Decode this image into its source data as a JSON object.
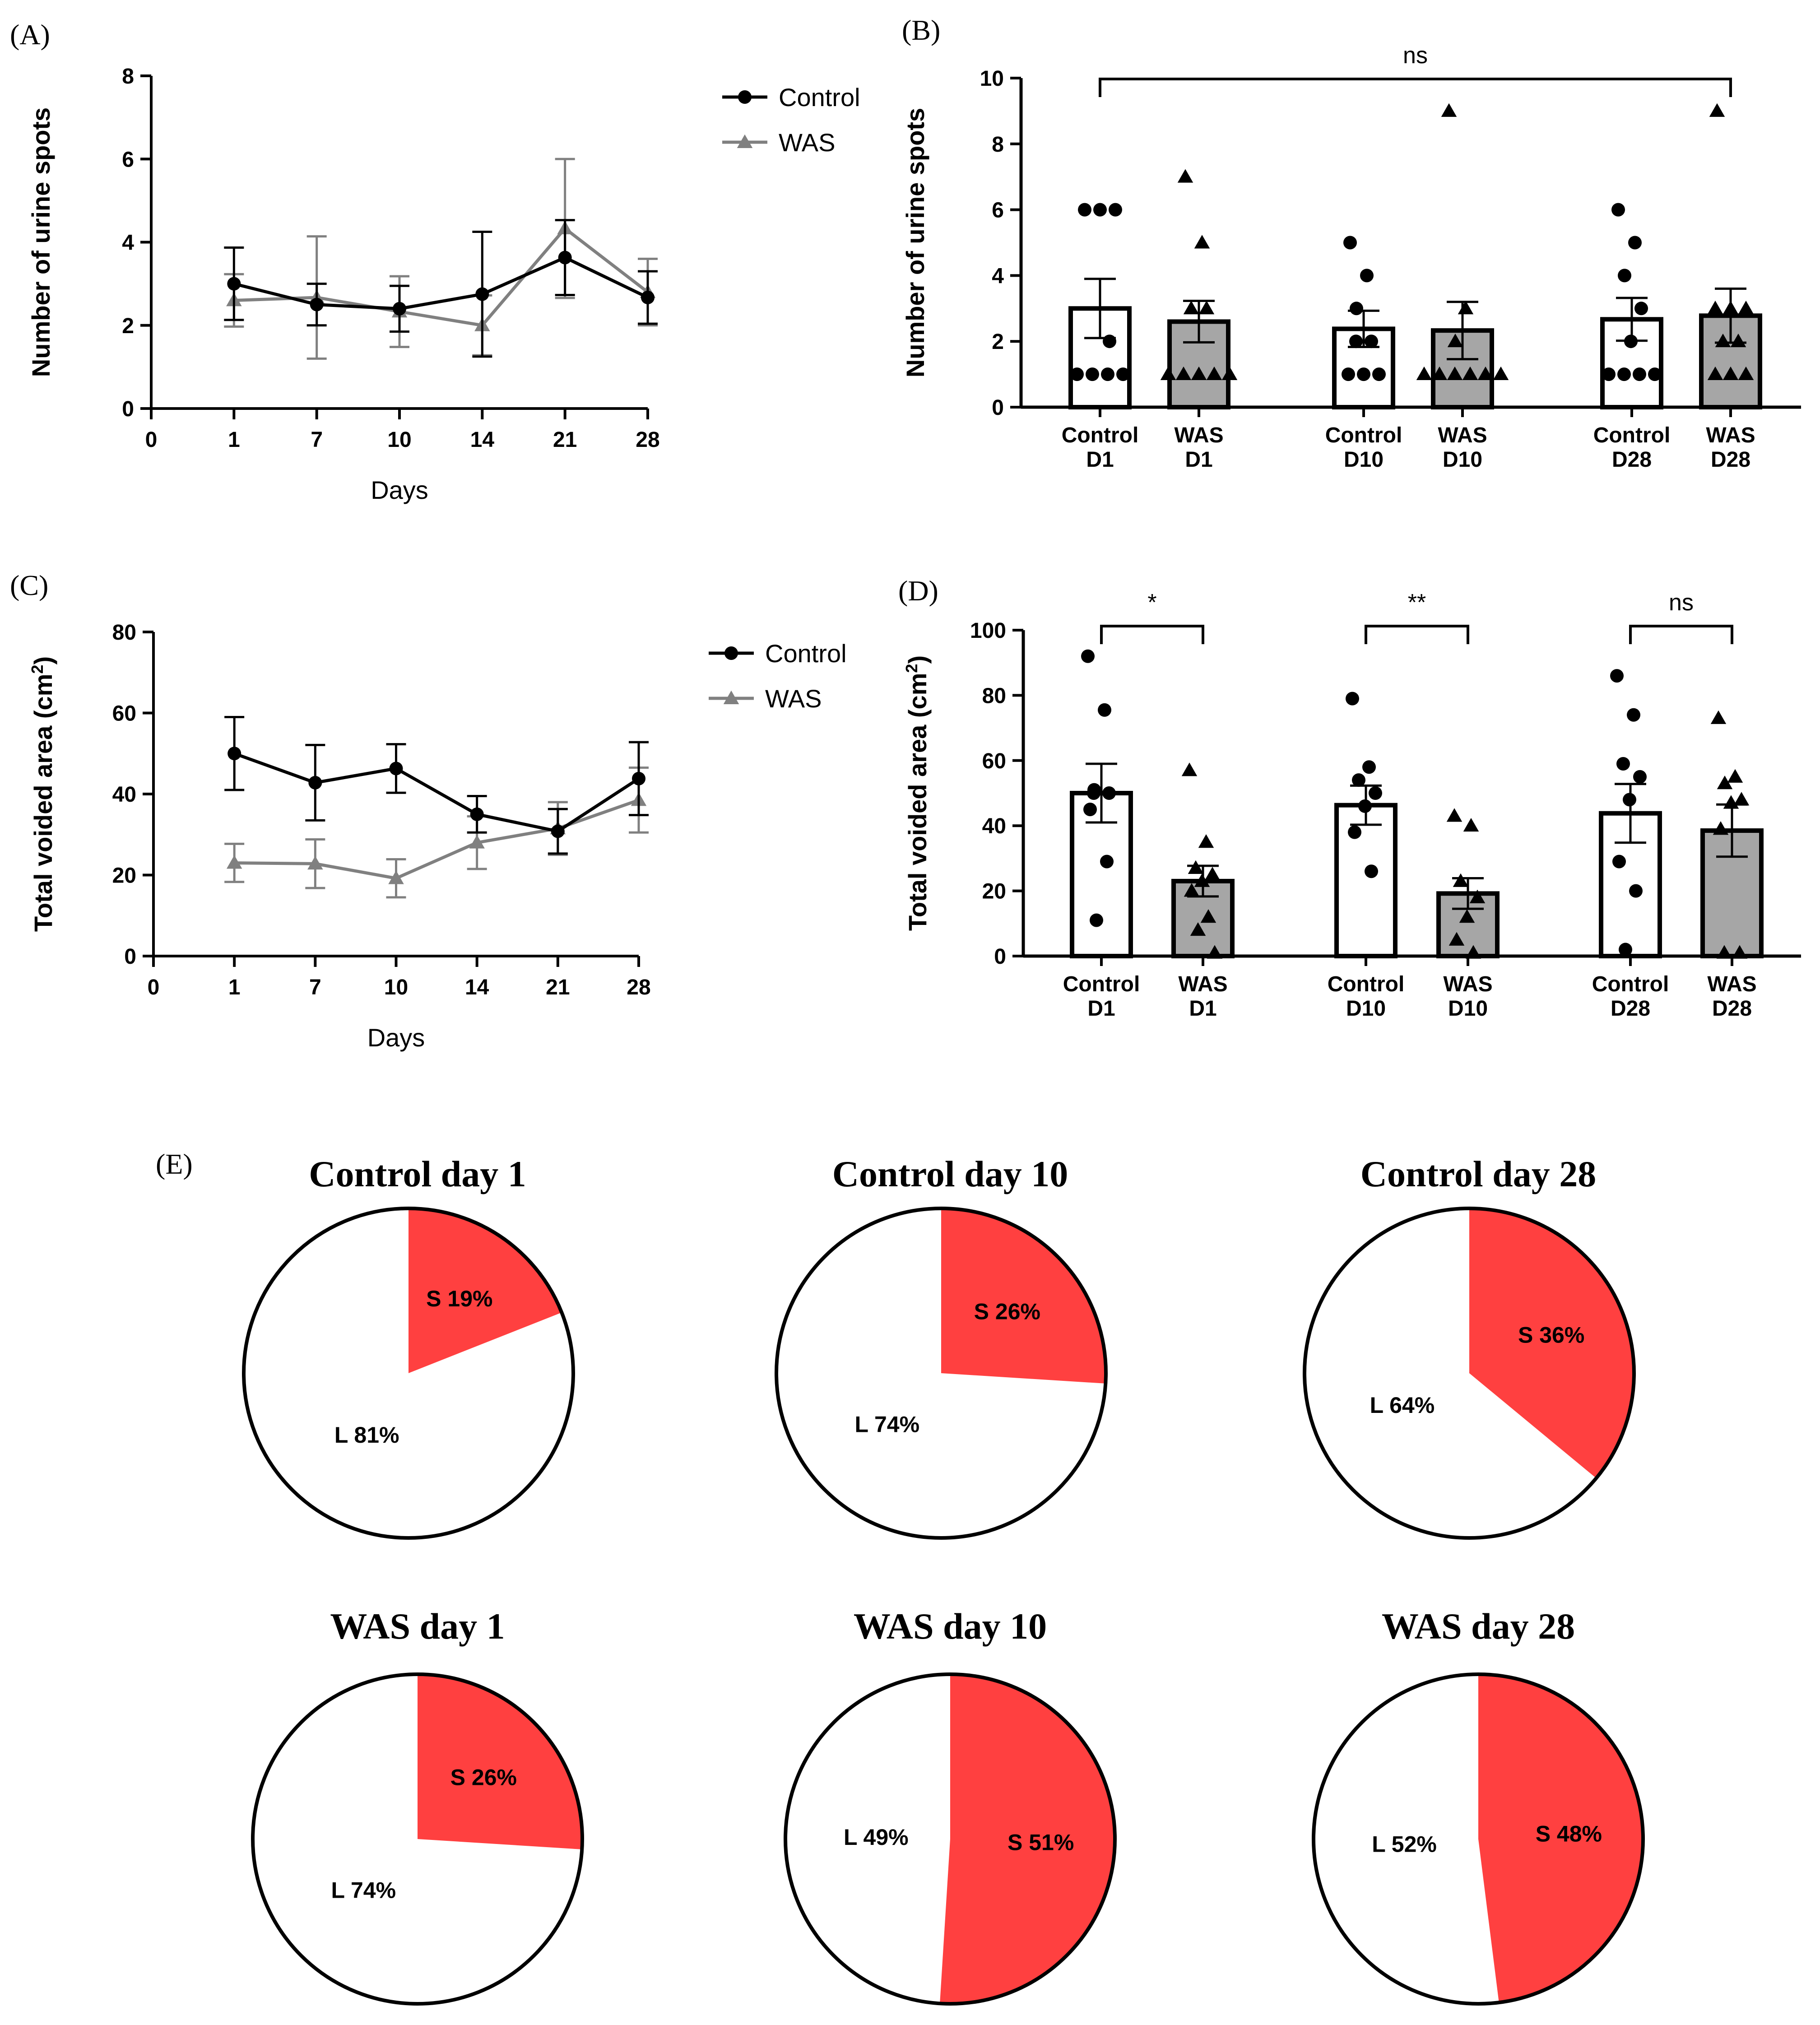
{
  "colors": {
    "control": "#000000",
    "was": "#808080",
    "bar_control_fill": "#ffffff",
    "bar_was_fill": "#a6a6a6",
    "pie_small": "#ff4040",
    "pie_large": "#ffffff"
  },
  "chart_data": [
    {
      "id": "A",
      "panel_label": "(A)",
      "type": "line",
      "x_ticks": [
        "0",
        "1",
        "7",
        "10",
        "14",
        "21",
        "28"
      ],
      "categories": [
        "1",
        "7",
        "10",
        "14",
        "21",
        "28"
      ],
      "xlabel": "Days",
      "ylabel": "Number of urine spots",
      "ylim": [
        0,
        8
      ],
      "y_ticks": [
        "0",
        "2",
        "4",
        "6",
        "8"
      ],
      "legend": {
        "placement": "right",
        "entries": [
          "Control",
          "WAS"
        ]
      },
      "series": [
        {
          "name": "Control",
          "marker": "circle",
          "values": [
            3.0,
            2.5,
            2.4,
            2.75,
            3.63,
            2.67
          ],
          "errors": [
            0.87,
            0.5,
            0.55,
            1.5,
            0.9,
            0.63
          ]
        },
        {
          "name": "WAS",
          "marker": "triangle",
          "values": [
            2.6,
            2.67,
            2.33,
            2.0,
            4.33,
            2.8
          ],
          "errors": [
            0.63,
            1.47,
            0.85,
            0.72,
            1.67,
            0.8
          ]
        }
      ]
    },
    {
      "id": "B",
      "panel_label": "(B)",
      "type": "bar",
      "categories": [
        "Control\nD1",
        "WAS\nD1",
        "Control\nD10",
        "WAS\nD10",
        "Control\nD28",
        "WAS\nD28"
      ],
      "ylabel": "Number of urine spots",
      "ylim": [
        0,
        10
      ],
      "y_ticks": [
        "0",
        "2",
        "4",
        "6",
        "8",
        "10"
      ],
      "values": [
        3.0,
        2.6,
        2.38,
        2.33,
        2.67,
        2.78
      ],
      "errors": [
        0.9,
        0.63,
        0.55,
        0.87,
        0.65,
        0.82
      ],
      "points": [
        [
          6,
          6,
          6,
          2,
          1,
          1,
          1,
          1
        ],
        [
          7,
          5,
          3,
          3,
          1,
          1,
          1,
          1,
          1
        ],
        [
          5,
          4,
          3,
          2,
          2,
          1,
          1,
          1
        ],
        [
          9,
          3,
          2,
          1,
          1,
          1,
          1,
          1,
          1
        ],
        [
          6,
          5,
          4,
          3,
          2,
          1,
          1,
          1,
          1
        ],
        [
          9,
          3,
          3,
          3,
          2,
          2,
          1,
          1,
          1
        ]
      ],
      "significance": [
        {
          "from": 0,
          "to": 5,
          "label": "ns"
        }
      ]
    },
    {
      "id": "C",
      "panel_label": "(C)",
      "type": "line",
      "x_ticks": [
        "0",
        "1",
        "7",
        "10",
        "14",
        "21",
        "28"
      ],
      "categories": [
        "1",
        "7",
        "10",
        "14",
        "21",
        "28"
      ],
      "xlabel": "Days",
      "ylabel": "Total voided area (cm²)",
      "ylim": [
        0,
        80
      ],
      "y_ticks": [
        "0",
        "20",
        "40",
        "60",
        "80"
      ],
      "legend": {
        "placement": "right",
        "entries": [
          "Control",
          "WAS"
        ]
      },
      "series": [
        {
          "name": "Control",
          "marker": "circle",
          "values": [
            50,
            42.8,
            46.3,
            35,
            30.8,
            43.8
          ],
          "errors": [
            9,
            9.3,
            6,
            4.5,
            5.5,
            9
          ]
        },
        {
          "name": "WAS",
          "marker": "triangle",
          "values": [
            23,
            22.8,
            19.2,
            28,
            31.5,
            38.5
          ],
          "errors": [
            4.7,
            6,
            4.7,
            6.5,
            6.5,
            8
          ]
        }
      ]
    },
    {
      "id": "D",
      "panel_label": "(D)",
      "type": "bar",
      "categories": [
        "Control\nD1",
        "WAS\nD1",
        "Control\nD10",
        "WAS\nD10",
        "Control\nD28",
        "WAS\nD28"
      ],
      "ylabel": "Total voided area (cm²)",
      "ylim": [
        0,
        100
      ],
      "y_ticks": [
        "0",
        "20",
        "40",
        "60",
        "80",
        "100"
      ],
      "values": [
        50,
        23,
        46.3,
        19.2,
        43.8,
        38.5
      ],
      "errors": [
        9,
        4.7,
        6,
        4.7,
        9,
        8
      ],
      "points": [
        [
          92,
          75.5,
          51,
          50,
          50,
          45,
          29,
          11
        ],
        [
          57,
          35,
          27,
          25,
          23,
          20,
          12,
          8,
          1
        ],
        [
          79,
          58,
          54,
          50,
          46,
          38,
          26
        ],
        [
          43,
          40,
          23,
          18,
          12,
          5,
          1
        ],
        [
          86,
          74,
          59,
          55,
          48,
          29,
          20,
          2
        ],
        [
          73,
          55,
          53,
          48,
          47,
          39,
          1,
          1
        ]
      ],
      "significance": [
        {
          "from": 0,
          "to": 1,
          "label": "*"
        },
        {
          "from": 2,
          "to": 3,
          "label": "**"
        },
        {
          "from": 4,
          "to": 5,
          "label": "ns"
        }
      ]
    },
    {
      "id": "E",
      "panel_label": "(E)",
      "type": "pie",
      "pies": [
        {
          "title": "Control day 1",
          "slices": [
            {
              "name": "S",
              "value": 19,
              "label": "S 19%"
            },
            {
              "name": "L",
              "value": 81,
              "label": "L 81%"
            }
          ]
        },
        {
          "title": "Control day 10",
          "slices": [
            {
              "name": "S",
              "value": 26,
              "label": "S 26%"
            },
            {
              "name": "L",
              "value": 74,
              "label": "L 74%"
            }
          ]
        },
        {
          "title": "Control day 28",
          "slices": [
            {
              "name": "S",
              "value": 36,
              "label": "S 36%"
            },
            {
              "name": "L",
              "value": 64,
              "label": "L 64%"
            }
          ]
        },
        {
          "title": "WAS day 1",
          "slices": [
            {
              "name": "S",
              "value": 26,
              "label": "S 26%"
            },
            {
              "name": "L",
              "value": 74,
              "label": "L 74%"
            }
          ]
        },
        {
          "title": "WAS day 10",
          "slices": [
            {
              "name": "S",
              "value": 51,
              "label": "S 51%"
            },
            {
              "name": "L",
              "value": 49,
              "label": "L 49%"
            }
          ]
        },
        {
          "title": "WAS day 28",
          "slices": [
            {
              "name": "S",
              "value": 48,
              "label": "S 48%"
            },
            {
              "name": "L",
              "value": 52,
              "label": "L 52%"
            }
          ]
        }
      ]
    }
  ]
}
